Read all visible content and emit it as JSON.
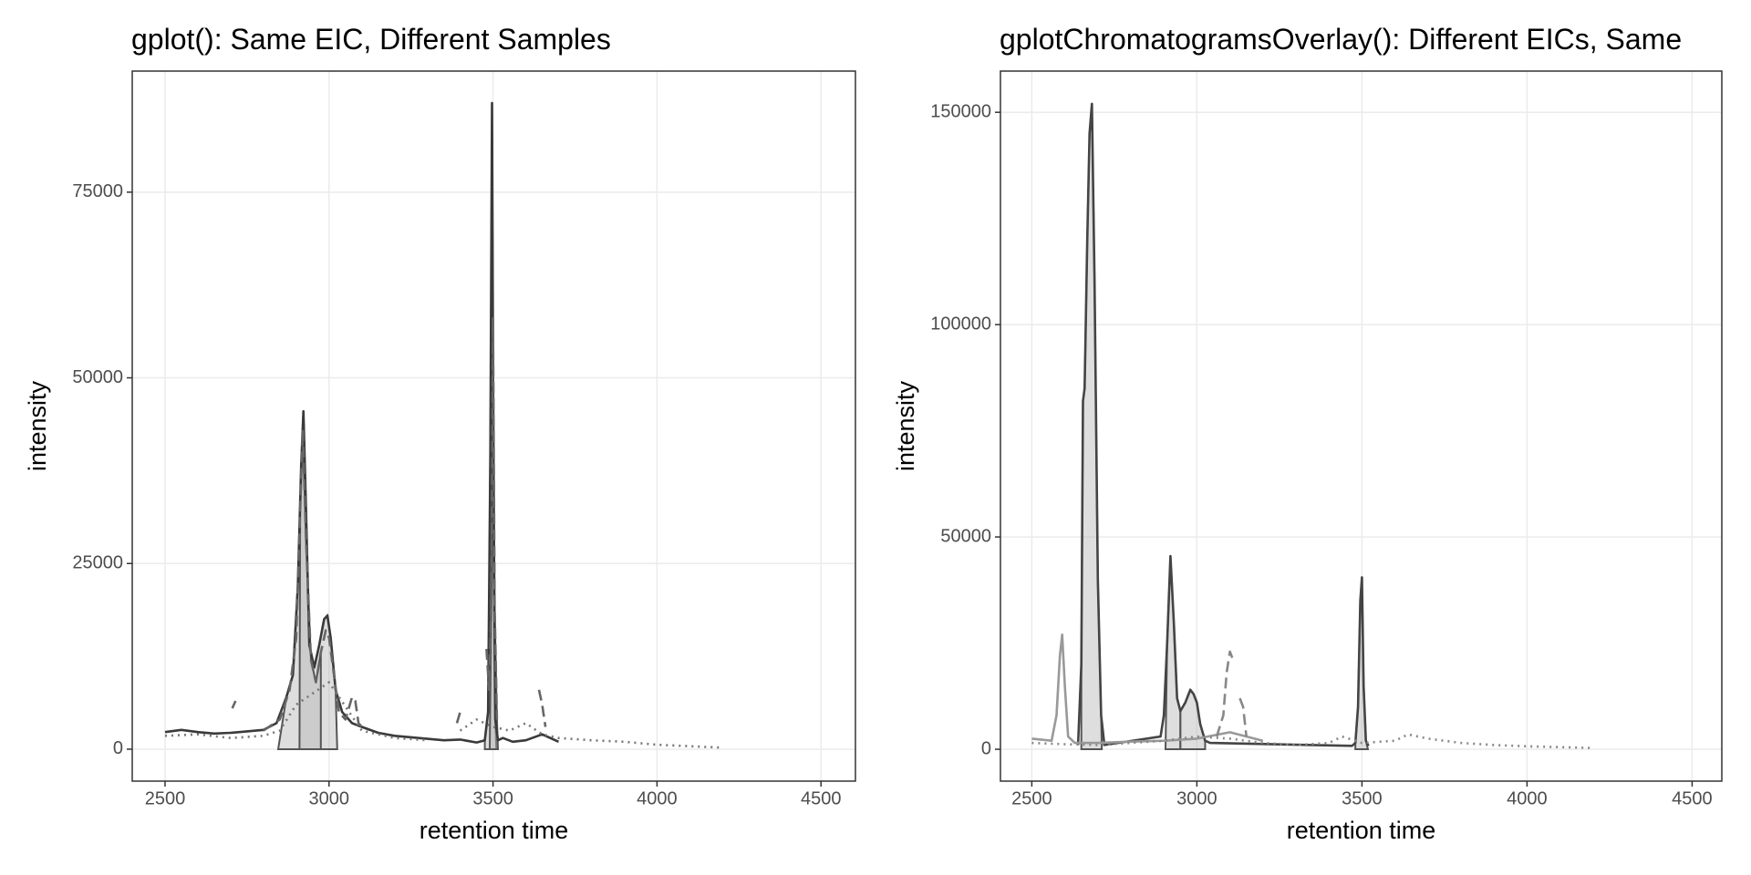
{
  "chart_data": [
    {
      "type": "line",
      "title": "gplot(): Same EIC, Different Samples",
      "x_label": "retention time",
      "y_label": "intensity",
      "xlim": [
        2400,
        4605
      ],
      "ylim": [
        -4300,
        91300
      ],
      "xticks": [
        2500,
        3000,
        3500,
        4000,
        4500
      ],
      "yticks": [
        0,
        25000,
        50000,
        75000
      ],
      "grid": true,
      "series": [
        {
          "color": "#3a3a3a",
          "linestyle": "solid",
          "x": [
            2500,
            2550,
            2600,
            2650,
            2700,
            2750,
            2800,
            2840,
            2870,
            2890,
            2905,
            2915,
            2922,
            2930,
            2940,
            2955,
            2970,
            2985,
            2995,
            3005,
            3020,
            3040,
            3070,
            3100,
            3150,
            3200,
            3250,
            3300,
            3350,
            3400,
            3450,
            3475,
            3485,
            3492,
            3497,
            3502,
            3507,
            3515,
            3530,
            3560,
            3600,
            3650,
            3700
          ],
          "values": [
            2300,
            2600,
            2300,
            2100,
            2200,
            2400,
            2600,
            3500,
            7000,
            10000,
            22000,
            38000,
            45500,
            32000,
            14000,
            11000,
            14000,
            17500,
            18000,
            15000,
            8000,
            5000,
            3500,
            3000,
            2200,
            1800,
            1600,
            1400,
            1200,
            1300,
            900,
            1200,
            5000,
            40000,
            87000,
            30000,
            4000,
            1200,
            1500,
            1000,
            1200,
            2000,
            1000
          ]
        },
        {
          "color": "#666666",
          "linestyle": "dashed",
          "x": [
            2705,
            2715,
            2725,
            2800,
            2850,
            2880,
            2900,
            2912,
            2920,
            2930,
            2945,
            2960,
            2975,
            2990,
            3000,
            3015,
            3030,
            3050,
            3070,
            3080,
            3090,
            3100,
            3380,
            3390,
            3400,
            3470,
            3480,
            3488,
            3495,
            3500,
            3505,
            3512,
            3520,
            3640,
            3650,
            3660
          ],
          "values": [
            5500,
            6500,
            null,
            2500,
            4000,
            8000,
            15000,
            32000,
            43000,
            28000,
            12000,
            9000,
            13000,
            16000,
            15000,
            10000,
            5000,
            4000,
            7000,
            6500,
            3500,
            3000,
            null,
            3500,
            5000,
            null,
            13500,
            8000,
            20000,
            58000,
            19000,
            4000,
            null,
            8000,
            6000,
            3000
          ]
        },
        {
          "color": "#777777",
          "linestyle": "dotted",
          "x": [
            2500,
            2600,
            2700,
            2800,
            2850,
            2900,
            3000,
            3100,
            3200,
            3300,
            3350,
            3400,
            3450,
            3500,
            3550,
            3600,
            3650,
            3700,
            3800,
            3900,
            4000,
            4100,
            4200
          ],
          "values": [
            1800,
            2000,
            1500,
            1800,
            2500,
            6000,
            9000,
            2500,
            1500,
            1200,
            null,
            2500,
            4000,
            3000,
            2500,
            3500,
            2000,
            1500,
            1200,
            1000,
            600,
            400,
            200
          ]
        }
      ],
      "peak_color": "#b5b5b5",
      "peaks": [
        {
          "series": 0,
          "rtmin": 2845,
          "rtmax": 3025
        },
        {
          "series": 1,
          "rtmin": 2910,
          "rtmax": 2975
        },
        {
          "series": 0,
          "rtmin": 3475,
          "rtmax": 3510
        },
        {
          "series": 1,
          "rtmin": 3490,
          "rtmax": 3515
        }
      ]
    },
    {
      "type": "line",
      "title": "gplotChromatogramsOverlay(): Different EICs, Same",
      "x_label": "retention time",
      "y_label": "intensity",
      "xlim": [
        2405,
        4590
      ],
      "ylim": [
        -7500,
        159700
      ],
      "xticks": [
        2500,
        3000,
        3500,
        4000,
        4500
      ],
      "yticks": [
        0,
        50000,
        100000,
        150000
      ],
      "grid": true,
      "series": [
        {
          "color": "#444444",
          "linestyle": "solid",
          "x": [
            2640,
            2650,
            2655,
            2660,
            2668,
            2675,
            2682,
            2690,
            2700,
            2710,
            2720,
            2890,
            2900,
            2910,
            2920,
            2930,
            2940,
            2950,
            2965,
            2980,
            2990,
            3000,
            3010,
            3025,
            3040,
            3470,
            3480,
            3488,
            3495,
            3500,
            3505,
            3512,
            3520
          ],
          "values": [
            1000,
            20000,
            82000,
            85000,
            120000,
            145000,
            152000,
            110000,
            40000,
            8000,
            1000,
            3000,
            8000,
            25000,
            45500,
            30000,
            12000,
            9000,
            11000,
            14000,
            13000,
            11000,
            6000,
            2000,
            1500,
            800,
            1500,
            10000,
            35000,
            40500,
            15000,
            2000,
            800
          ]
        },
        {
          "color": "#999999",
          "linestyle": "solid",
          "x": [
            2500,
            2560,
            2575,
            2585,
            2592,
            2600,
            2610,
            2630,
            2700,
            2800,
            2900,
            3000,
            3100,
            3200
          ],
          "values": [
            2500,
            2000,
            8000,
            22000,
            27000,
            15000,
            3000,
            1500,
            1500,
            1800,
            2000,
            2500,
            4000,
            2000
          ]
        },
        {
          "color": "#888888",
          "linestyle": "dashed",
          "x": [
            3060,
            3080,
            3090,
            3100,
            3110,
            3120,
            3130,
            3140,
            3150
          ],
          "values": [
            3000,
            8000,
            18000,
            23000,
            21000,
            null,
            12000,
            10000,
            3000
          ]
        },
        {
          "color": "#888888",
          "linestyle": "dotted",
          "x": [
            2500,
            2600,
            2700,
            2800,
            2900,
            3000,
            3100,
            3200,
            3300,
            3400,
            3440,
            3500,
            3600,
            3640,
            3700,
            3800,
            3900,
            4000,
            4100,
            4200
          ],
          "values": [
            1500,
            1200,
            1000,
            1500,
            2000,
            3000,
            2500,
            1500,
            1000,
            1500,
            3000,
            1500,
            2000,
            3500,
            2500,
            1500,
            1000,
            700,
            500,
            300
          ]
        }
      ],
      "peak_color": "#b5b5b5",
      "peaks": [
        {
          "series": 0,
          "rtmin": 2650,
          "rtmax": 2712
        },
        {
          "series": 0,
          "rtmin": 2905,
          "rtmax": 2950
        },
        {
          "series": 0,
          "rtmin": 2950,
          "rtmax": 3025
        },
        {
          "series": 0,
          "rtmin": 3480,
          "rtmax": 3518
        }
      ]
    }
  ]
}
